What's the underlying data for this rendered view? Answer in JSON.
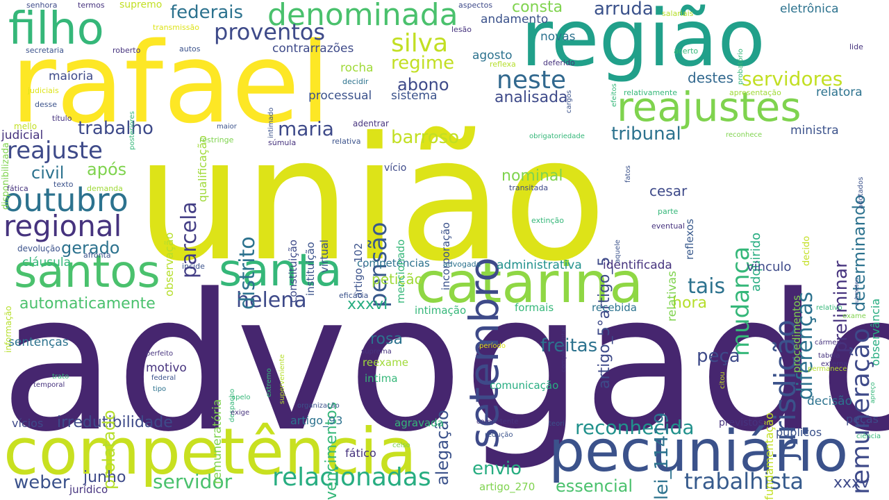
{
  "cloud": {
    "palette": {
      "indigo": "#46266f",
      "slate": "#404d88",
      "teal": "#2b8f8c",
      "green": "#35b779",
      "lime": "#7fd34e",
      "yellow": "#dde318"
    },
    "words": [
      {
        "text": "advogado",
        "color": "#46266f"
      },
      {
        "text": "união",
        "color": "#dde318"
      },
      {
        "text": "rafael",
        "color": "#fde725"
      },
      {
        "text": "região",
        "color": "#21a08a"
      },
      {
        "text": "competência",
        "color": "#c8e020"
      },
      {
        "text": "catarina",
        "color": "#8fd744"
      },
      {
        "text": "pecuniário",
        "color": "#3b528b"
      },
      {
        "text": "santos",
        "color": "#4ac16d"
      },
      {
        "text": "santa",
        "color": "#35b779"
      },
      {
        "text": "setembro",
        "color": "#3e4a89"
      },
      {
        "text": "filho",
        "color": "#35b779"
      },
      {
        "text": "reajustes",
        "color": "#7fd34e"
      },
      {
        "text": "outubro",
        "color": "#2c728e"
      },
      {
        "text": "regional",
        "color": "#46337e"
      },
      {
        "text": "denominada",
        "color": "#4ac16d"
      },
      {
        "text": "proventos",
        "color": "#3e4a89"
      },
      {
        "text": "relacionadas",
        "color": "#27ad81"
      },
      {
        "text": "trabalhista",
        "color": "#375b8d"
      },
      {
        "text": "jurisdição",
        "color": "#3b528b"
      },
      {
        "text": "remuneração",
        "color": "#3e4a89"
      },
      {
        "text": "reajuste",
        "color": "#3e4a89"
      },
      {
        "text": "silva",
        "color": "#c2df23"
      },
      {
        "text": "neste",
        "color": "#31688e"
      },
      {
        "text": "reconhecida",
        "color": "#21918c"
      },
      {
        "text": "helena",
        "color": "#3e4a89"
      },
      {
        "text": "servidor",
        "color": "#4ac16d"
      },
      {
        "text": "parcela",
        "color": "#433e85"
      },
      {
        "text": "distrito",
        "color": "#2c728e"
      },
      {
        "text": "pensão",
        "color": "#38598c"
      },
      {
        "text": "mudança",
        "color": "#35b779"
      },
      {
        "text": "diferenças",
        "color": "#2c728e"
      },
      {
        "text": "freitas",
        "color": "#2c728e"
      },
      {
        "text": "servidores",
        "color": "#c2df23"
      },
      {
        "text": "tais",
        "color": "#2c728e"
      },
      {
        "text": "maria",
        "color": "#3e4a89"
      },
      {
        "text": "federais",
        "color": "#2c728e"
      },
      {
        "text": "weber",
        "color": "#3b528b"
      },
      {
        "text": "peça",
        "color": "#3e4a89"
      },
      {
        "text": "envio",
        "color": "#27ad81"
      },
      {
        "text": "trabalho",
        "color": "#3e4a89"
      },
      {
        "text": "regime",
        "color": "#c2df23"
      },
      {
        "text": "arruda",
        "color": "#3b528b"
      },
      {
        "text": "barroso",
        "color": "#c2df23"
      },
      {
        "text": "essencial",
        "color": "#4ac16d"
      },
      {
        "text": "tribunal",
        "color": "#2c728e"
      },
      {
        "text": "abono",
        "color": "#3e4a89"
      },
      {
        "text": "automaticamente",
        "color": "#4ac16d"
      },
      {
        "text": "irredutibilidade",
        "color": "#3e4a89"
      },
      {
        "text": "gerado",
        "color": "#2c728e"
      },
      {
        "text": "civil",
        "color": "#2c728e"
      },
      {
        "text": "após",
        "color": "#7fd34e"
      },
      {
        "text": "preliminar",
        "color": "#46337e"
      },
      {
        "text": "determinando",
        "color": "#2c728e"
      },
      {
        "text": "artigo_5°artigo_5",
        "color": "#3e4a89"
      },
      {
        "text": "lei_11419",
        "color": "#2c728e"
      },
      {
        "text": "prolatado",
        "color": "#b5de2b"
      },
      {
        "text": "alegação",
        "color": "#3b528b"
      },
      {
        "text": "vencimentos",
        "color": "#35b779"
      },
      {
        "text": "xxxvi",
        "color": "#27ad81"
      },
      {
        "text": "xxxv",
        "color": "#3e4a89"
      },
      {
        "text": "junho",
        "color": "#3e4a89"
      },
      {
        "text": "rosa",
        "color": "#2c728e"
      },
      {
        "text": "nominal",
        "color": "#7fd34e"
      },
      {
        "text": "analisada",
        "color": "#3e4a89"
      },
      {
        "text": "hora",
        "color": "#b5de2b"
      },
      {
        "text": "cesar",
        "color": "#3e4a89"
      },
      {
        "text": "petição",
        "color": "#a0da39"
      },
      {
        "text": "adquirido",
        "color": "#27ad81"
      },
      {
        "text": "identificada",
        "color": "#46337e"
      },
      {
        "text": "administrativa",
        "color": "#21918c"
      },
      {
        "text": "vínculo",
        "color": "#3e4a89"
      },
      {
        "text": "ministra",
        "color": "#3b528b"
      },
      {
        "text": "consta",
        "color": "#7fd34e"
      },
      {
        "text": "destes",
        "color": "#31688e"
      },
      {
        "text": "eletrônica",
        "color": "#2c728e"
      },
      {
        "text": "relatora",
        "color": "#2c728e"
      },
      {
        "text": "processual",
        "color": "#3b528b"
      },
      {
        "text": "sistema",
        "color": "#3b528b"
      },
      {
        "text": "rocha",
        "color": "#a0da39"
      },
      {
        "text": "agosto",
        "color": "#2c728e"
      },
      {
        "text": "andamento",
        "color": "#3b528b"
      },
      {
        "text": "novas",
        "color": "#2c728e"
      },
      {
        "text": "contrarrazões",
        "color": "#3e4a89"
      },
      {
        "text": "maioria",
        "color": "#3e4a89"
      },
      {
        "text": "judicial",
        "color": "#46337e"
      },
      {
        "text": "cláusula",
        "color": "#35b779"
      },
      {
        "text": "sentenças",
        "color": "#2c728e"
      },
      {
        "text": "motivo",
        "color": "#46337e"
      },
      {
        "text": "competências",
        "color": "#2c728e"
      },
      {
        "text": "decisão",
        "color": "#2c728e"
      },
      {
        "text": "relativas",
        "color": "#7fd34e"
      },
      {
        "text": "fundamentação",
        "color": "#c2df23"
      },
      {
        "text": "remuneratória",
        "color": "#7fd34e"
      },
      {
        "text": "observação",
        "color": "#b5de2b"
      },
      {
        "text": "qualificação",
        "color": "#a0da39"
      },
      {
        "text": "constituição",
        "color": "#3e4a89"
      },
      {
        "text": "instituição",
        "color": "#3b528b"
      },
      {
        "text": "virtual",
        "color": "#3b528b"
      },
      {
        "text": "artigo_102",
        "color": "#3b528b"
      },
      {
        "text": "mencionado",
        "color": "#35b779"
      },
      {
        "text": "incorporação",
        "color": "#3b528b"
      },
      {
        "text": "procedimentos",
        "color": "#7fd34e"
      },
      {
        "text": "observância",
        "color": "#27ad81"
      },
      {
        "text": "reflexos",
        "color": "#38598c"
      },
      {
        "text": "intimação",
        "color": "#35b779"
      },
      {
        "text": "formais",
        "color": "#35b779"
      },
      {
        "text": "recebida",
        "color": "#2c728e"
      },
      {
        "text": "agravada",
        "color": "#35b779"
      },
      {
        "text": "artigo_93",
        "color": "#2c728e"
      },
      {
        "text": "fático",
        "color": "#46337e"
      },
      {
        "text": "comunicação",
        "color": "#27ad81"
      },
      {
        "text": "reexame",
        "color": "#a0da39"
      },
      {
        "text": "intima",
        "color": "#35b779"
      },
      {
        "text": "públicos",
        "color": "#3b528b"
      },
      {
        "text": "peças",
        "color": "#3e4a89"
      },
      {
        "text": "vícios",
        "color": "#3e4a89"
      },
      {
        "text": "previstos",
        "color": "#46337e"
      },
      {
        "text": "artigo_270",
        "color": "#7fd34e"
      },
      {
        "text": "jurídico",
        "color": "#46337e"
      },
      {
        "text": "disponibilizada",
        "color": "#7fd34e"
      },
      {
        "text": "adentrar",
        "color": "#46337e"
      },
      {
        "text": "vício",
        "color": "#3e4a89"
      },
      {
        "text": "devolução",
        "color": "#3b528b"
      },
      {
        "text": "fática",
        "color": "#46337e"
      },
      {
        "text": "texto",
        "color": "#3b528b"
      },
      {
        "text": "demanda",
        "color": "#a0da39"
      },
      {
        "text": "afronta",
        "color": "#3b528b"
      },
      {
        "text": "incide",
        "color": "#3b528b"
      },
      {
        "text": "informação",
        "color": "#b5de2b"
      },
      {
        "text": "eficácia",
        "color": "#3b528b"
      },
      {
        "text": "advogada",
        "color": "#2c728e"
      },
      {
        "text": "transitada",
        "color": "#3e4a89"
      },
      {
        "text": "extinção",
        "color": "#35b779"
      },
      {
        "text": "aquele",
        "color": "#3b528b"
      },
      {
        "text": "parte",
        "color": "#35b779"
      },
      {
        "text": "eventual",
        "color": "#46337e"
      },
      {
        "text": "decido",
        "color": "#c2df23"
      },
      {
        "text": "acerto",
        "color": "#35b779"
      },
      {
        "text": "lide",
        "color": "#46337e"
      },
      {
        "text": "salariais",
        "color": "#b5de2b"
      },
      {
        "text": "probatório",
        "color": "#35b779"
      },
      {
        "text": "aspectos",
        "color": "#3e4a89"
      },
      {
        "text": "lesão",
        "color": "#46337e"
      },
      {
        "text": "senhora",
        "color": "#3e4a89"
      },
      {
        "text": "termos",
        "color": "#46337e"
      },
      {
        "text": "supremo",
        "color": "#c2df23"
      },
      {
        "text": "transmissão",
        "color": "#dde318"
      },
      {
        "text": "secretaria",
        "color": "#3b528b"
      },
      {
        "text": "roberto",
        "color": "#46337e"
      },
      {
        "text": "autos",
        "color": "#3b528b"
      },
      {
        "text": "judiciais",
        "color": "#dde318"
      },
      {
        "text": "posteriores",
        "color": "#35b779"
      },
      {
        "text": "intimado",
        "color": "#3b528b"
      },
      {
        "text": "desse",
        "color": "#3b528b"
      },
      {
        "text": "título",
        "color": "#46337e"
      },
      {
        "text": "mello",
        "color": "#c2df23"
      },
      {
        "text": "maior",
        "color": "#3b528b"
      },
      {
        "text": "súmula",
        "color": "#46337e"
      },
      {
        "text": "relativa",
        "color": "#3b528b"
      },
      {
        "text": "restringe",
        "color": "#7fd34e"
      },
      {
        "text": "decidir",
        "color": "#2c728e"
      },
      {
        "text": "reflexa",
        "color": "#b5de2b"
      },
      {
        "text": "deferido",
        "color": "#46337e"
      },
      {
        "text": "cargos",
        "color": "#3b528b"
      },
      {
        "text": "efeitos",
        "color": "#35b779"
      },
      {
        "text": "relativamente",
        "color": "#35b779"
      },
      {
        "text": "apresentação",
        "color": "#a0da39"
      },
      {
        "text": "reconhece",
        "color": "#7fd34e"
      },
      {
        "text": "obrigatoriedade",
        "color": "#35b779"
      },
      {
        "text": "fatos",
        "color": "#3b528b"
      },
      {
        "text": "adotados",
        "color": "#3b528b"
      },
      {
        "text": "relativo",
        "color": "#35b779"
      },
      {
        "text": "exame",
        "color": "#7fd34e"
      },
      {
        "text": "submeteu",
        "color": "#3b528b"
      },
      {
        "text": "complementar",
        "color": "#46337e"
      },
      {
        "text": "período",
        "color": "#dde318"
      },
      {
        "text": "extremo",
        "color": "#35b779"
      },
      {
        "text": "superveniente",
        "color": "#b5de2b"
      },
      {
        "text": "despacho",
        "color": "#35b779"
      },
      {
        "text": "suprema",
        "color": "#46337e"
      },
      {
        "text": "perfeito",
        "color": "#46337e"
      },
      {
        "text": "federal",
        "color": "#3b528b"
      },
      {
        "text": "tipo",
        "color": "#2c728e"
      },
      {
        "text": "trato",
        "color": "#35b779"
      },
      {
        "text": "temporal",
        "color": "#46337e"
      },
      {
        "text": "apelo",
        "color": "#35b779"
      },
      {
        "text": "exige",
        "color": "#46337e"
      },
      {
        "text": "organização",
        "color": "#3b528b"
      },
      {
        "text": "celso",
        "color": "#7fd34e"
      },
      {
        "text": "competente",
        "color": "#46337e"
      },
      {
        "text": "redução",
        "color": "#3b528b"
      },
      {
        "text": "teori",
        "color": "#3b528b"
      },
      {
        "text": "cármen",
        "color": "#46337e"
      },
      {
        "text": "tabela",
        "color": "#46337e"
      },
      {
        "text": "externa",
        "color": "#46337e"
      },
      {
        "text": "permanece",
        "color": "#b5de2b"
      },
      {
        "text": "citou",
        "color": "#c2df23"
      },
      {
        "text": "apreço",
        "color": "#35b779"
      },
      {
        "text": "ciência",
        "color": "#35b779"
      }
    ]
  }
}
